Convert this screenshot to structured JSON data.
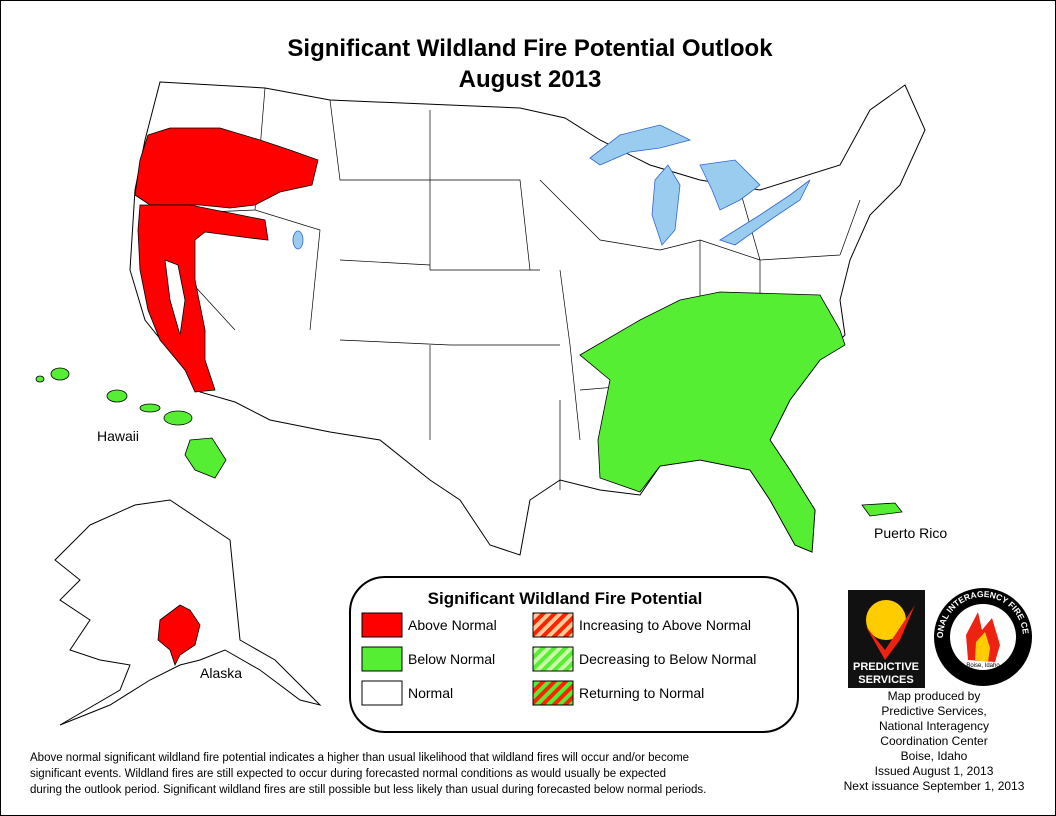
{
  "title": {
    "line1": "Significant Wildland Fire Potential Outlook",
    "line2": "August 2013"
  },
  "map_labels": {
    "hawaii": "Hawaii",
    "alaska": "Alaska",
    "puerto_rico": "Puerto Rico"
  },
  "legend": {
    "title": "Significant Wildland Fire Potential",
    "items": [
      {
        "label": "Above Normal",
        "color": "#ff0000"
      },
      {
        "label": "Below Normal",
        "color": "#55ee33"
      },
      {
        "label": "Normal",
        "color": "#ffffff"
      },
      {
        "label": "Increasing to Above Normal",
        "color": "#ffcc99",
        "stripe": "#ff2200"
      },
      {
        "label": "Decreasing to Below Normal",
        "color": "#ccffaa",
        "stripe": "#55ee33"
      },
      {
        "label": "Returning to Normal",
        "color": "#55ee33",
        "stripe": "#ff2200"
      }
    ]
  },
  "logos": {
    "predictive": [
      "PREDICTIVE",
      "SERVICES"
    ],
    "nifc": "NATIONAL INTERAGENCY FIRE CENTER",
    "nifc_place": "Boise, Idaho"
  },
  "credits": [
    "Map produced by",
    "Predictive Services,",
    "National Interagency",
    "Coordination Center",
    "Boise, Idaho",
    "Issued August 1, 2013",
    "Next issuance September 1, 2013"
  ],
  "footnote": [
    "Above normal significant wildland fire potential indicates a higher than usual likelihood that wildland fires will occur and/or become",
    "significant events.  Wildland fires are still expected to occur during forecasted normal conditions as would usually be expected",
    "during the outlook period.  Significant wildland fires are still possible but less likely than usual during forecasted below normal periods."
  ]
}
